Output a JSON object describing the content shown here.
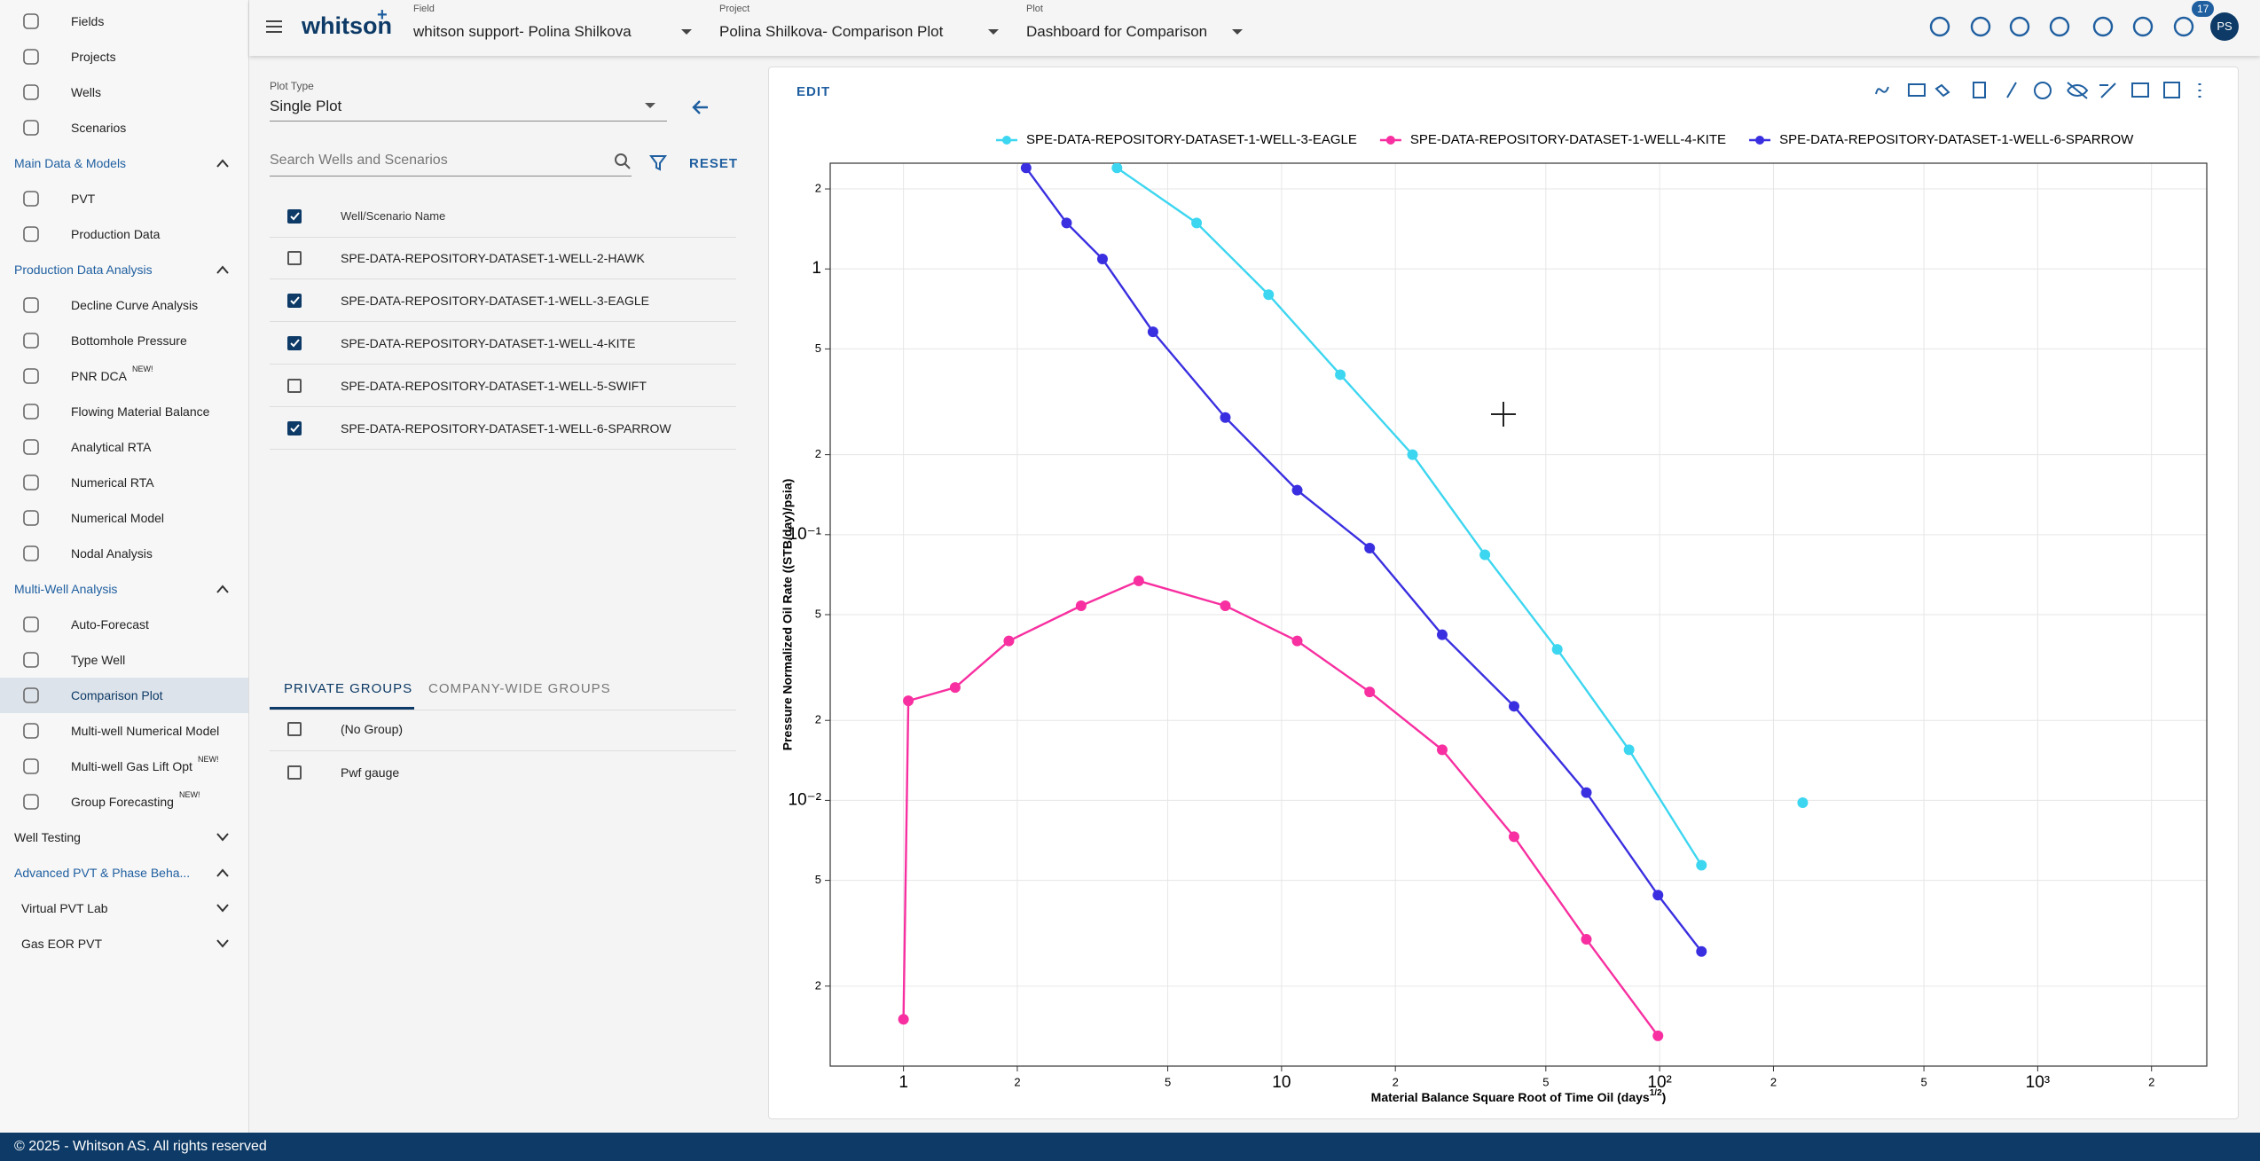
{
  "sidebar": [
    {
      "items": [
        {
          "label": "Fields"
        },
        {
          "label": "Projects"
        },
        {
          "label": "Wells"
        },
        {
          "label": "Scenarios"
        }
      ]
    },
    {
      "title": "Main Data & Models",
      "expanded": true,
      "items": [
        {
          "label": "PVT"
        },
        {
          "label": "Production Data"
        }
      ]
    },
    {
      "title": "Production Data Analysis",
      "expanded": true,
      "items": [
        {
          "label": "Decline Curve Analysis"
        },
        {
          "label": "Bottomhole Pressure"
        },
        {
          "label": "PNR DCA",
          "badge": "NEW!"
        },
        {
          "label": "Flowing Material Balance"
        },
        {
          "label": "Analytical RTA"
        },
        {
          "label": "Numerical RTA"
        },
        {
          "label": "Numerical Model"
        },
        {
          "label": "Nodal Analysis"
        }
      ]
    },
    {
      "title": "Multi-Well Analysis",
      "expanded": true,
      "items": [
        {
          "label": "Auto-Forecast"
        },
        {
          "label": "Type Well"
        },
        {
          "label": "Comparison Plot",
          "selected": true
        },
        {
          "label": "Multi-well Numerical Model"
        },
        {
          "label": "Multi-well Gas Lift Opt",
          "badge": "NEW!"
        },
        {
          "label": "Group Forecasting",
          "badge": "NEW!"
        }
      ]
    },
    {
      "title": "Well Testing",
      "expanded": false,
      "items": []
    },
    {
      "title": "Advanced PVT & Phase Beha...",
      "expanded": true,
      "items": [
        {
          "label": "Virtual PVT Lab",
          "expanded": false
        },
        {
          "label": "Gas EOR PVT",
          "expanded": false
        }
      ]
    }
  ],
  "topbar": {
    "logo": "whitson",
    "logo_mark": "+",
    "fields": [
      {
        "label": "Field",
        "value": "whitson support- Polina Shilkova"
      },
      {
        "label": "Project",
        "value": "Polina Shilkova- Comparison Plot"
      },
      {
        "label": "Plot",
        "value": "Dashboard for Comparison"
      }
    ],
    "notifications": "17",
    "avatar": "PS"
  },
  "panel": {
    "plot_type_label": "Plot Type",
    "plot_type": "Single Plot",
    "search_placeholder": "Search Wells and Scenarios",
    "reset": "RESET",
    "table_header": "Well/Scenario Name",
    "header_checked": true,
    "wells": [
      {
        "name": "SPE-DATA-REPOSITORY-DATASET-1-WELL-2-HAWK",
        "checked": false
      },
      {
        "name": "SPE-DATA-REPOSITORY-DATASET-1-WELL-3-EAGLE",
        "checked": true
      },
      {
        "name": "SPE-DATA-REPOSITORY-DATASET-1-WELL-4-KITE",
        "checked": true
      },
      {
        "name": "SPE-DATA-REPOSITORY-DATASET-1-WELL-5-SWIFT",
        "checked": false
      },
      {
        "name": "SPE-DATA-REPOSITORY-DATASET-1-WELL-6-SPARROW",
        "checked": true
      }
    ],
    "tabs": [
      "PRIVATE GROUPS",
      "COMPANY-WIDE GROUPS"
    ],
    "groups": [
      {
        "name": "(No Group)",
        "checked": false
      },
      {
        "name": "Pwf gauge",
        "checked": false
      }
    ]
  },
  "edit": "EDIT",
  "footer": "© 2025 - Whitson AS. All rights reserved",
  "chart_data": {
    "type": "scatter_line",
    "log_x": true,
    "log_y": true,
    "grid": true,
    "legend": "top",
    "x_label": {
      "text": "Material Balance Square Root of Time Oil (days",
      "sup": "1/2",
      "end": ")"
    },
    "y_label": "Pressure Normalized Oil Rate ((STB/day)/psia)",
    "xlim": [
      0.64,
      2800
    ],
    "ylim": [
      0.001,
      2.5
    ],
    "xticks": [
      1,
      {
        "value": 2,
        "label": "2"
      },
      5,
      10,
      {
        "value": 20,
        "label": "2"
      },
      {
        "value": 50,
        "label": "5"
      },
      {
        "value": 100,
        "label": "10²"
      },
      {
        "value": 200,
        "label": "2"
      },
      {
        "value": 500,
        "label": "5"
      },
      {
        "value": 1000,
        "label": "10³"
      },
      {
        "value": 2000,
        "label": "2"
      }
    ],
    "yticks": [
      2,
      1,
      {
        "value": 0.5,
        "label": "5"
      },
      {
        "value": 0.2,
        "label": "2"
      },
      {
        "value": 0.1,
        "label": "10⁻¹"
      },
      {
        "value": 0.05,
        "label": "5"
      },
      {
        "value": 0.02,
        "label": "2"
      },
      {
        "value": 0.01,
        "label": "10⁻²"
      },
      {
        "value": 0.005,
        "label": "5"
      },
      {
        "value": 0.002,
        "label": "2"
      }
    ],
    "series": [
      {
        "name": "SPE-DATA-REPOSITORY-DATASET-1-WELL-3-EAGLE",
        "color": "#3dd6f0",
        "x": [
          3.67,
          5.96,
          9.24,
          14.3,
          22.2,
          34.5,
          53.6,
          83,
          129,
          null,
          239
        ],
        "values": [
          2.4,
          1.49,
          0.8,
          0.4,
          0.2,
          0.084,
          0.037,
          0.0155,
          0.0057,
          null,
          0.0098
        ]
      },
      {
        "name": "SPE-DATA-REPOSITORY-DATASET-1-WELL-4-KITE",
        "color": "#f72fa0",
        "x": [
          1,
          1.03,
          1.37,
          1.9,
          2.95,
          4.19,
          7.1,
          11,
          17.1,
          26.6,
          41.2,
          64,
          99
        ],
        "values": [
          0.0015,
          0.0237,
          0.0266,
          0.0398,
          0.054,
          0.067,
          0.054,
          0.0398,
          0.0256,
          0.0155,
          0.0073,
          0.003,
          0.0013
        ]
      },
      {
        "name": "SPE-DATA-REPOSITORY-DATASET-1-WELL-6-SPARROW",
        "color": "#3a2fe0",
        "x": [
          2.11,
          2.7,
          3.36,
          4.57,
          7.1,
          11,
          17.1,
          26.6,
          41.2,
          64,
          99,
          129
        ],
        "values": [
          2.4,
          1.49,
          1.09,
          0.58,
          0.276,
          0.147,
          0.089,
          0.042,
          0.0226,
          0.0107,
          0.0044,
          0.0027
        ]
      }
    ]
  }
}
